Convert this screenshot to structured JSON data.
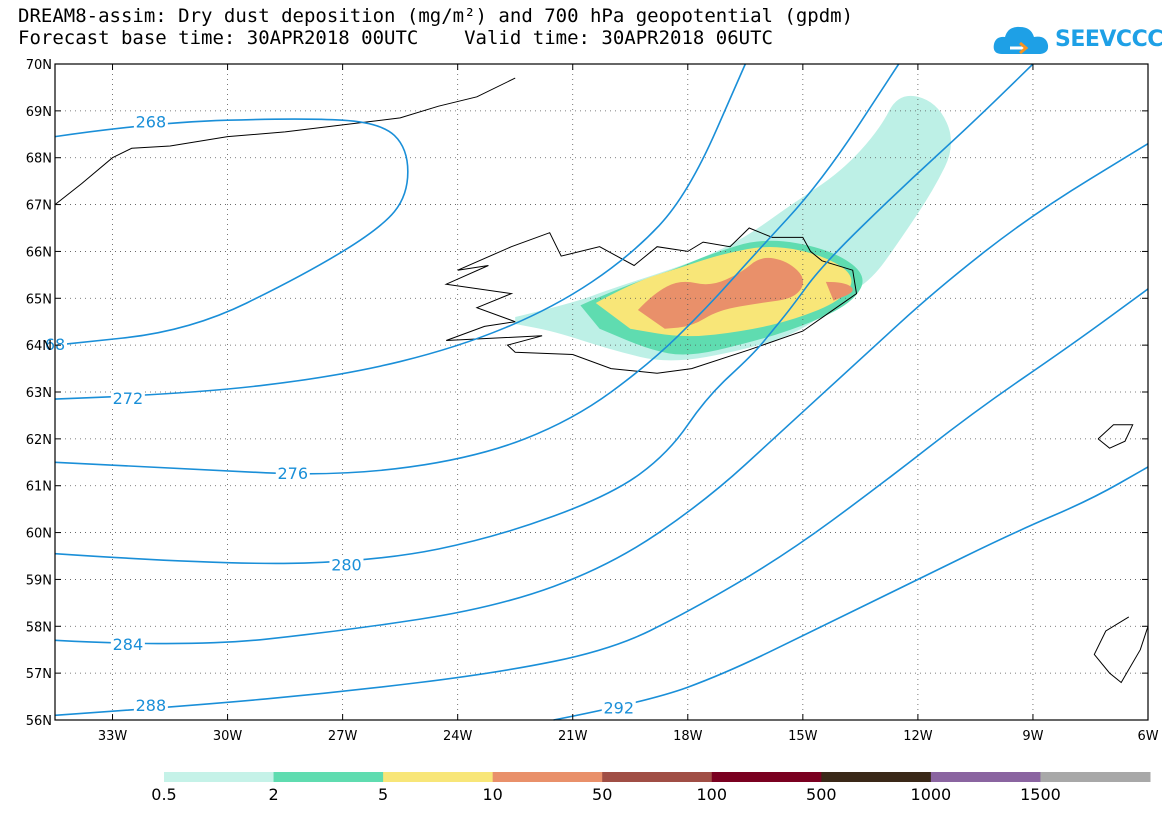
{
  "title": {
    "line1": "DREAM8-assim: Dry dust deposition (mg/m²) and 700 hPa geopotential (gpdm)",
    "line2": "Forecast base time: 30APR2018 00UTC    Valid time: 30APR2018 06UTC"
  },
  "logo": {
    "text": "SEEVCCC",
    "icon": "cloud-logo-icon",
    "color": "#1ea0e6"
  },
  "map": {
    "lon_range": [
      -34.5,
      -6
    ],
    "lat_range": [
      56,
      70
    ],
    "lon_ticks": [
      {
        "value": -33,
        "label": "33W"
      },
      {
        "value": -30,
        "label": "30W"
      },
      {
        "value": -27,
        "label": "27W"
      },
      {
        "value": -24,
        "label": "24W"
      },
      {
        "value": -21,
        "label": "21W"
      },
      {
        "value": -18,
        "label": "18W"
      },
      {
        "value": -15,
        "label": "15W"
      },
      {
        "value": -12,
        "label": "12W"
      },
      {
        "value": -9,
        "label": "9W"
      },
      {
        "value": -6,
        "label": "6W"
      }
    ],
    "lat_ticks": [
      {
        "value": 70,
        "label": "70N"
      },
      {
        "value": 69,
        "label": "69N"
      },
      {
        "value": 68,
        "label": "68N"
      },
      {
        "value": 67,
        "label": "67N"
      },
      {
        "value": 66,
        "label": "66N"
      },
      {
        "value": 65,
        "label": "65N"
      },
      {
        "value": 64,
        "label": "64N"
      },
      {
        "value": 63,
        "label": "63N"
      },
      {
        "value": 62,
        "label": "62N"
      },
      {
        "value": 61,
        "label": "61N"
      },
      {
        "value": 60,
        "label": "60N"
      },
      {
        "value": 59,
        "label": "59N"
      },
      {
        "value": 58,
        "label": "58N"
      },
      {
        "value": 57,
        "label": "57N"
      },
      {
        "value": 56,
        "label": "56N"
      }
    ],
    "grid": "dotted",
    "contour_color": "#1a8fd8",
    "contours": [
      {
        "label": "268",
        "label_at": [
          -32,
          68.75
        ],
        "points": [
          [
            -34.5,
            68.45
          ],
          [
            -32,
            68.75
          ],
          [
            -28,
            68.85
          ],
          [
            -26,
            68.75
          ],
          [
            -25.3,
            68.2
          ],
          [
            -25.3,
            67.2
          ],
          [
            -26,
            66.5
          ],
          [
            -28,
            65.5
          ],
          [
            -31,
            64.3
          ],
          [
            -34.5,
            64.0
          ]
        ]
      },
      {
        "label": "68",
        "label_at": [
          -34.5,
          64.0
        ],
        "points": []
      },
      {
        "label": "272",
        "label_at": [
          -32.6,
          62.85
        ],
        "points": [
          [
            -34.5,
            62.85
          ],
          [
            -31,
            62.95
          ],
          [
            -27,
            63.35
          ],
          [
            -24,
            63.95
          ],
          [
            -21.5,
            64.8
          ],
          [
            -19.5,
            65.9
          ],
          [
            -18,
            67.2
          ],
          [
            -16.5,
            70
          ]
        ]
      },
      {
        "label": "276",
        "label_at": [
          -28.3,
          61.25
        ],
        "points": [
          [
            -34.5,
            61.5
          ],
          [
            -31,
            61.35
          ],
          [
            -27,
            61.2
          ],
          [
            -23.5,
            61.6
          ],
          [
            -21,
            62.4
          ],
          [
            -19,
            63.6
          ],
          [
            -17.5,
            64.8
          ],
          [
            -16.3,
            65.9
          ],
          [
            -14.5,
            67.5
          ],
          [
            -12.5,
            70
          ]
        ]
      },
      {
        "label": "280",
        "label_at": [
          -26.9,
          59.3
        ],
        "points": [
          [
            -34.5,
            59.55
          ],
          [
            -30,
            59.3
          ],
          [
            -26,
            59.4
          ],
          [
            -23,
            59.9
          ],
          [
            -20,
            60.8
          ],
          [
            -18.5,
            61.7
          ],
          [
            -17.5,
            62.9
          ],
          [
            -16.3,
            63.8
          ],
          [
            -15.8,
            64.3
          ],
          [
            -15.3,
            64.8
          ],
          [
            -14.5,
            65.7
          ],
          [
            -12.5,
            67.3
          ],
          [
            -10.5,
            68.8
          ],
          [
            -9,
            70
          ]
        ]
      },
      {
        "label": "284",
        "label_at": [
          -32.6,
          57.6
        ],
        "points": [
          [
            -34.5,
            57.7
          ],
          [
            -31,
            57.55
          ],
          [
            -27,
            57.9
          ],
          [
            -23,
            58.4
          ],
          [
            -20,
            59.3
          ],
          [
            -17.5,
            60.7
          ],
          [
            -15.5,
            62.2
          ],
          [
            -13.5,
            63.7
          ],
          [
            -11.5,
            65.2
          ],
          [
            -9,
            66.8
          ],
          [
            -6,
            68.3
          ]
        ]
      },
      {
        "label": "288",
        "label_at": [
          -32,
          56.3
        ],
        "points": [
          [
            -34.5,
            56.1
          ],
          [
            -31,
            56.3
          ],
          [
            -27,
            56.6
          ],
          [
            -23,
            57.0
          ],
          [
            -20,
            57.5
          ],
          [
            -18,
            58.3
          ],
          [
            -15.5,
            59.5
          ],
          [
            -13,
            61.0
          ],
          [
            -10.5,
            62.6
          ],
          [
            -8,
            64.0
          ],
          [
            -6,
            65.2
          ]
        ]
      },
      {
        "label": "292",
        "label_at": [
          -19.8,
          56.25
        ],
        "points": [
          [
            -21.5,
            56.0
          ],
          [
            -19,
            56.4
          ],
          [
            -17,
            57.0
          ],
          [
            -14.5,
            58.0
          ],
          [
            -12,
            59.0
          ],
          [
            -9.5,
            60.0
          ],
          [
            -7.5,
            60.7
          ],
          [
            -6,
            61.4
          ]
        ]
      }
    ],
    "coastline_color": "#000000",
    "dust_colors": [
      "#bdf0e6",
      "#5fdcb0",
      "#f8e678",
      "#e9906a",
      "#a04e45",
      "#7a0020",
      "#3a2818",
      "#8a64a0",
      "#a8a8a8"
    ]
  },
  "legend": {
    "colors": [
      "#c5f2e8",
      "#5fdcb0",
      "#f8e678",
      "#e9906a",
      "#a04e45",
      "#7a0020",
      "#3a2818",
      "#8a64a0",
      "#a8a8a8"
    ],
    "labels": [
      "0.5",
      "2",
      "5",
      "10",
      "50",
      "100",
      "500",
      "1000",
      "1500"
    ]
  }
}
